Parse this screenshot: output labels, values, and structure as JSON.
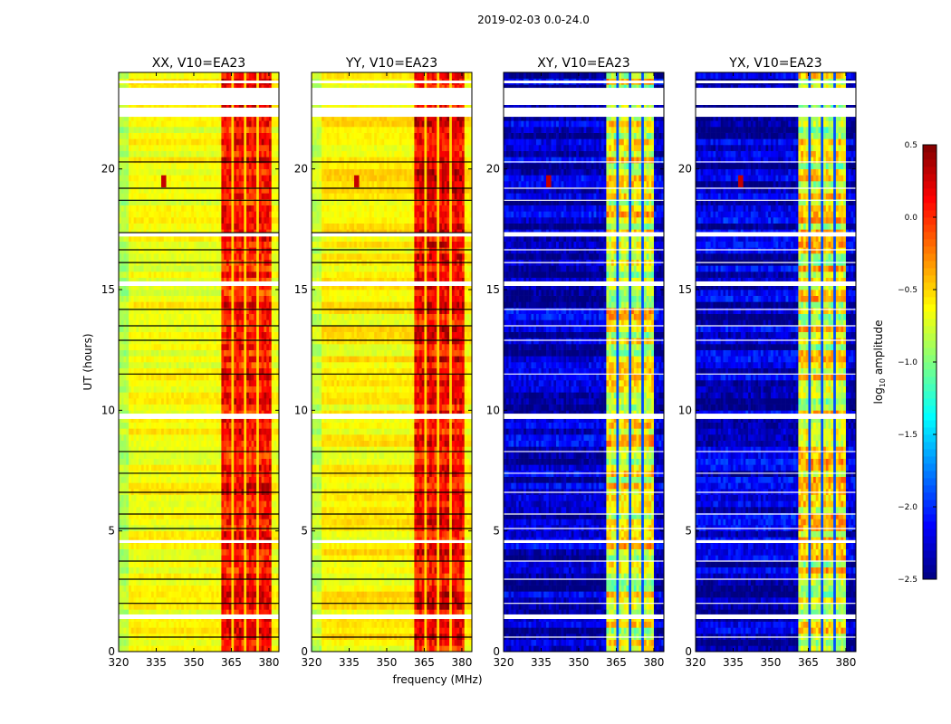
{
  "chart_data": {
    "type": "heatmap",
    "title": "2019-02-03 0.0-24.0",
    "xlabel": "frequency (MHz)",
    "ylabel": "UT (hours)",
    "xlim": [
      320,
      384
    ],
    "ylim": [
      0,
      24
    ],
    "xticks": [
      "320",
      "335",
      "350",
      "365",
      "380"
    ],
    "yticks": [
      "0",
      "5",
      "10",
      "15",
      "20"
    ],
    "colorbar": {
      "label": "log10 amplitude",
      "label_main": "log",
      "label_sub": "10",
      "label_rest": " amplitude",
      "colormap": "jet",
      "vmin": -2.5,
      "vmax": 0.5,
      "ticks": [
        "0.5",
        "0.0",
        "−0.5",
        "−1.0",
        "−1.5",
        "−2.0",
        "−2.5"
      ]
    },
    "flagged_time_ranges_hours": [
      [
        23.55,
        23.66
      ],
      [
        22.65,
        23.36
      ],
      [
        22.16,
        22.54
      ],
      [
        17.2,
        17.38
      ],
      [
        15.15,
        15.34
      ],
      [
        9.64,
        9.86
      ],
      [
        4.5,
        4.62
      ],
      [
        1.35,
        1.54
      ]
    ],
    "flag_lines_hours": [
      20.29,
      19.2,
      18.7,
      17.36,
      16.65,
      16.12,
      14.18,
      13.5,
      12.9,
      11.5,
      8.29,
      7.39,
      6.6,
      5.7,
      5.1,
      3.75,
      3.0,
      2.0,
      0.6
    ],
    "panels": [
      {
        "title": "XX, V10=EA23",
        "baseline": -0.65,
        "band_range_mhz": [
          361,
          380.5
        ],
        "band_level": 0.0,
        "gap_channels_mhz": [
          365.2,
          370.6,
          375.6
        ],
        "rfi_spike": {
          "freq": 338,
          "time": 19.5
        }
      },
      {
        "title": "YY, V10=EA23",
        "baseline": -0.6,
        "band_range_mhz": [
          361,
          381
        ],
        "band_level": 0.05,
        "gap_channels_mhz": [
          365.2,
          370.6,
          375.6
        ],
        "rfi_spike": {
          "freq": 338,
          "time": 19.5
        }
      },
      {
        "title": "XY, V10=EA23",
        "baseline": -2.3,
        "band_range_mhz": [
          360.7,
          380.4
        ],
        "band_level": -0.75,
        "gap_channels_mhz": [
          365.5,
          370.9,
          375.6,
          380.4
        ],
        "rfi_spike": {
          "freq": 338,
          "time": 19.5
        }
      },
      {
        "title": "YX, V10=EA23",
        "baseline": -2.3,
        "band_range_mhz": [
          360.7,
          380.4
        ],
        "band_level": -0.75,
        "gap_channels_mhz": [
          365.5,
          370.9,
          375.6,
          380.4
        ],
        "rfi_spike": {
          "freq": 338,
          "time": 19.5
        }
      }
    ]
  }
}
